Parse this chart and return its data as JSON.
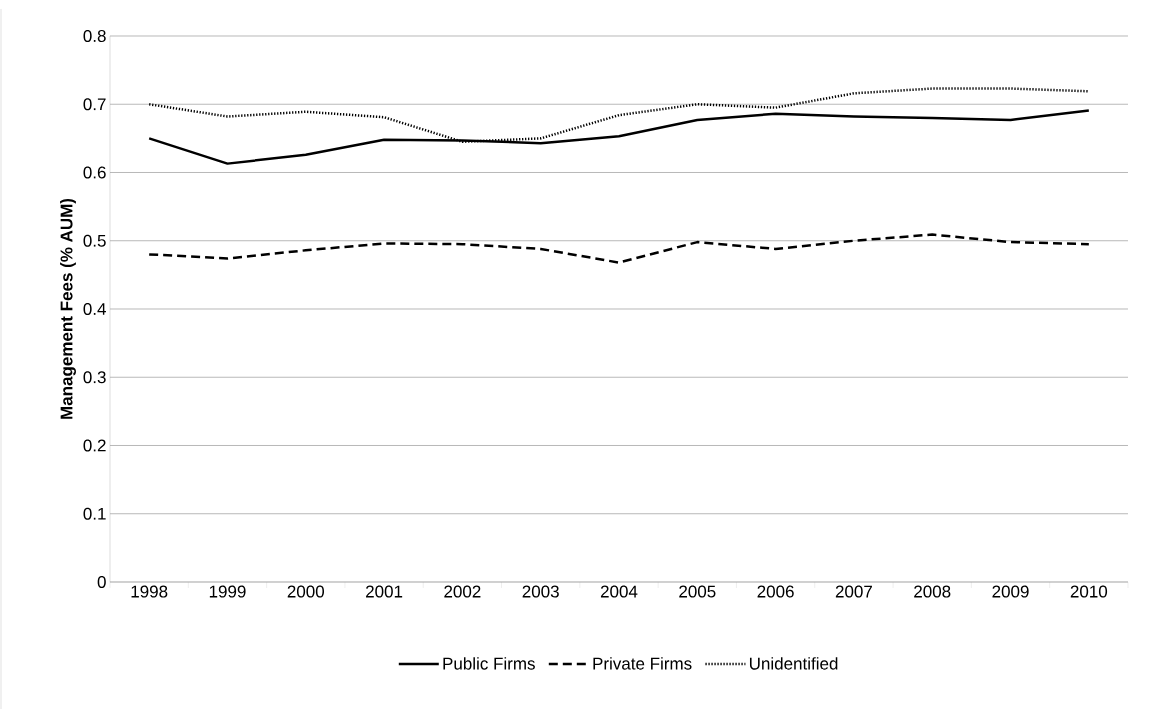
{
  "chart_data": {
    "type": "line",
    "ylabel": "Management Fees (% AUM)",
    "categories": [
      "1998",
      "1999",
      "2000",
      "2001",
      "2002",
      "2003",
      "2004",
      "2005",
      "2006",
      "2007",
      "2008",
      "2009",
      "2010"
    ],
    "series": [
      {
        "name": "Public Firms",
        "color": "#000000",
        "line_style": "solid",
        "values": [
          0.65,
          0.613,
          0.626,
          0.648,
          0.647,
          0.643,
          0.653,
          0.677,
          0.686,
          0.682,
          0.68,
          0.677,
          0.691
        ]
      },
      {
        "name": "Private Firms",
        "color": "#000000",
        "line_style": "dashed",
        "values": [
          0.48,
          0.474,
          0.486,
          0.496,
          0.495,
          0.488,
          0.468,
          0.498,
          0.488,
          0.5,
          0.509,
          0.498,
          0.495
        ]
      },
      {
        "name": "Unidentified",
        "color": "#000000",
        "line_style": "dotted",
        "values": [
          0.7,
          0.682,
          0.689,
          0.681,
          0.645,
          0.65,
          0.684,
          0.7,
          0.695,
          0.716,
          0.723,
          0.723,
          0.719
        ]
      }
    ],
    "ylim": [
      0,
      0.8
    ],
    "yticks": [
      0,
      0.1,
      0.2,
      0.3,
      0.4,
      0.5,
      0.6,
      0.7,
      0.8
    ],
    "grid": "y",
    "legend": "bottom"
  }
}
